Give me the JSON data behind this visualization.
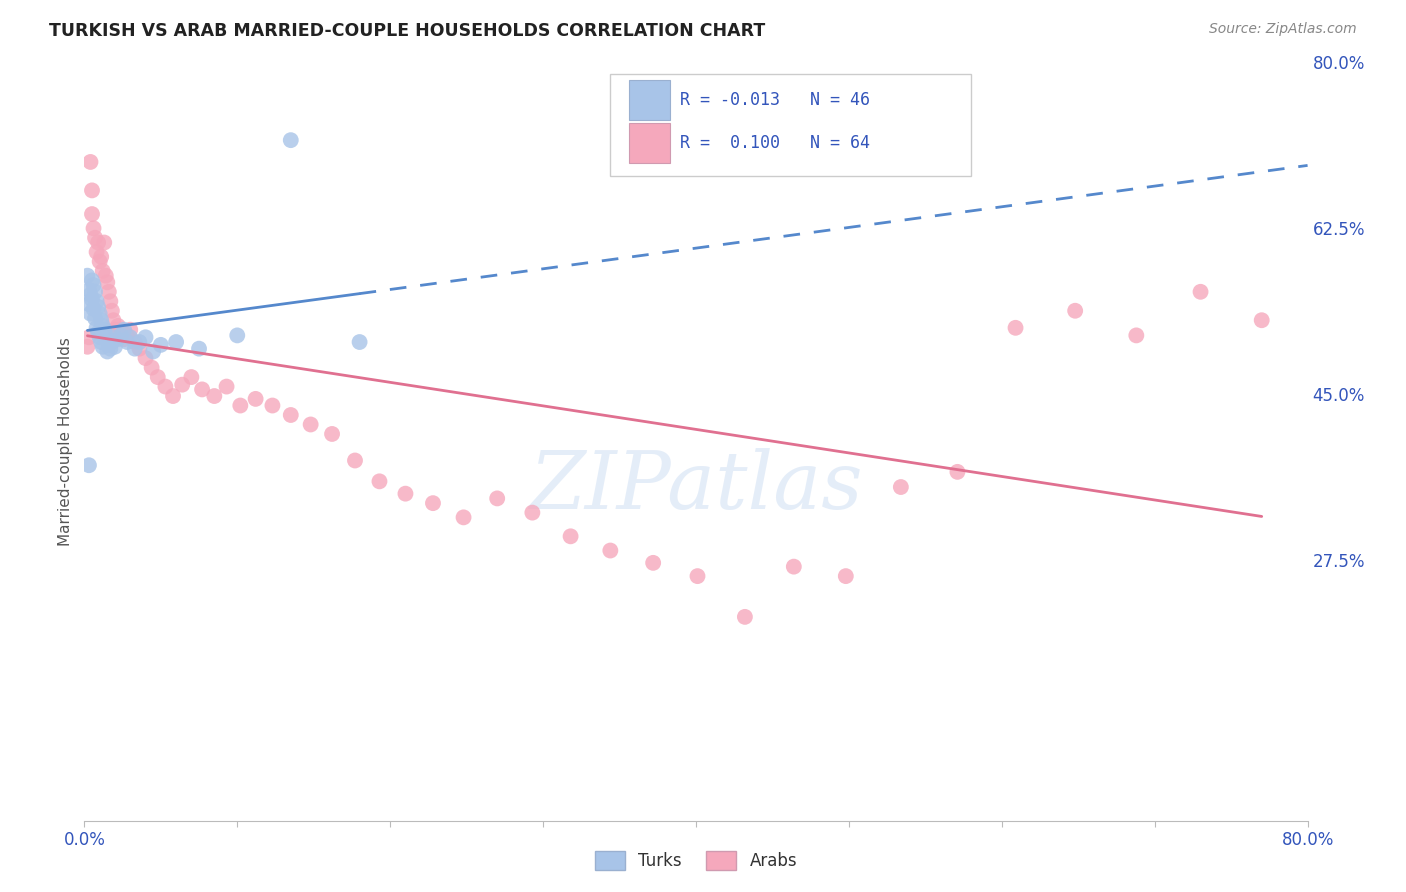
{
  "title": "TURKISH VS ARAB MARRIED-COUPLE HOUSEHOLDS CORRELATION CHART",
  "source": "Source: ZipAtlas.com",
  "ylabel": "Married-couple Households",
  "xlim": [
    0.0,
    0.8
  ],
  "ylim": [
    0.0,
    0.8
  ],
  "ytick_positions": [
    0.275,
    0.45,
    0.625,
    0.8
  ],
  "ytick_labels": [
    "27.5%",
    "45.0%",
    "62.5%",
    "80.0%"
  ],
  "grid_color": "#c8c8c8",
  "background_color": "#ffffff",
  "watermark": "ZIPatlas",
  "legend_R_turks": "-0.013",
  "legend_N_turks": "46",
  "legend_R_arabs": "0.100",
  "legend_N_arabs": "64",
  "turks_color": "#a8c4e8",
  "arabs_color": "#f5a8bc",
  "trend_turks_color": "#5588cc",
  "trend_arabs_color": "#e07090",
  "turks_x": [
    0.002,
    0.003,
    0.003,
    0.004,
    0.004,
    0.005,
    0.005,
    0.006,
    0.006,
    0.007,
    0.007,
    0.008,
    0.008,
    0.009,
    0.009,
    0.01,
    0.01,
    0.011,
    0.011,
    0.012,
    0.012,
    0.013,
    0.014,
    0.015,
    0.015,
    0.016,
    0.017,
    0.018,
    0.019,
    0.02,
    0.022,
    0.024,
    0.026,
    0.028,
    0.03,
    0.033,
    0.036,
    0.04,
    0.045,
    0.05,
    0.06,
    0.075,
    0.1,
    0.135,
    0.18,
    0.003
  ],
  "turks_y": [
    0.575,
    0.56,
    0.545,
    0.555,
    0.535,
    0.57,
    0.55,
    0.565,
    0.54,
    0.558,
    0.53,
    0.548,
    0.52,
    0.542,
    0.515,
    0.535,
    0.51,
    0.528,
    0.505,
    0.522,
    0.5,
    0.518,
    0.512,
    0.508,
    0.495,
    0.502,
    0.498,
    0.505,
    0.51,
    0.5,
    0.508,
    0.512,
    0.518,
    0.505,
    0.51,
    0.498,
    0.505,
    0.51,
    0.495,
    0.502,
    0.505,
    0.498,
    0.512,
    0.718,
    0.505,
    0.375
  ],
  "arabs_x": [
    0.002,
    0.003,
    0.004,
    0.005,
    0.005,
    0.006,
    0.007,
    0.008,
    0.009,
    0.01,
    0.011,
    0.012,
    0.013,
    0.014,
    0.015,
    0.016,
    0.017,
    0.018,
    0.019,
    0.02,
    0.022,
    0.024,
    0.026,
    0.028,
    0.03,
    0.033,
    0.036,
    0.04,
    0.044,
    0.048,
    0.053,
    0.058,
    0.064,
    0.07,
    0.077,
    0.085,
    0.093,
    0.102,
    0.112,
    0.123,
    0.135,
    0.148,
    0.162,
    0.177,
    0.193,
    0.21,
    0.228,
    0.248,
    0.27,
    0.293,
    0.318,
    0.344,
    0.372,
    0.401,
    0.432,
    0.464,
    0.498,
    0.534,
    0.571,
    0.609,
    0.648,
    0.688,
    0.73,
    0.77
  ],
  "arabs_y": [
    0.5,
    0.51,
    0.695,
    0.665,
    0.64,
    0.625,
    0.615,
    0.6,
    0.61,
    0.59,
    0.595,
    0.58,
    0.61,
    0.575,
    0.568,
    0.558,
    0.548,
    0.538,
    0.528,
    0.518,
    0.522,
    0.518,
    0.508,
    0.512,
    0.518,
    0.505,
    0.498,
    0.488,
    0.478,
    0.468,
    0.458,
    0.448,
    0.46,
    0.468,
    0.455,
    0.448,
    0.458,
    0.438,
    0.445,
    0.438,
    0.428,
    0.418,
    0.408,
    0.38,
    0.358,
    0.345,
    0.335,
    0.32,
    0.34,
    0.325,
    0.3,
    0.285,
    0.272,
    0.258,
    0.215,
    0.268,
    0.258,
    0.352,
    0.368,
    0.52,
    0.538,
    0.512,
    0.558,
    0.528
  ]
}
